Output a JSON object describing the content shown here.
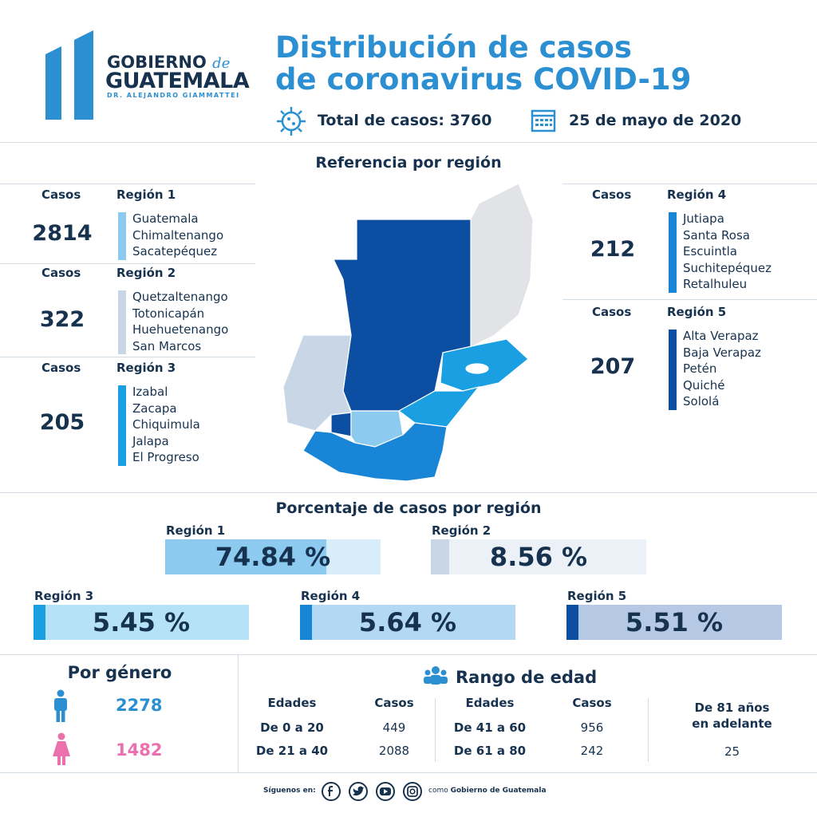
{
  "header": {
    "logo_line1": "GOBIERNO",
    "logo_de": "de",
    "logo_line2": "GUATEMALA",
    "logo_sub": "DR. ALEJANDRO GIAMMATTEI",
    "title_line1": "Distribución de casos",
    "title_line2": "de coronavirus COVID-19",
    "total": "Total de casos: 3760",
    "date": "25 de mayo de 2020"
  },
  "map_section": {
    "title": "Referencia por región",
    "regions": [
      {
        "cases_label": "Casos",
        "cases": 2814,
        "name": "Región 1",
        "departments": [
          "Guatemala",
          "Chimaltenango",
          "Sacatepéquez"
        ]
      },
      {
        "cases_label": "Casos",
        "cases": 322,
        "name": "Región 2",
        "departments": [
          "Quetzaltenango",
          "Totonicapán",
          "Huehuetenango",
          "San Marcos"
        ]
      },
      {
        "cases_label": "Casos",
        "cases": 205,
        "name": "Región 3",
        "departments": [
          "Izabal",
          "Zacapa",
          "Chiquimula",
          "Jalapa",
          "El Progreso"
        ]
      },
      {
        "cases_label": "Casos",
        "cases": 212,
        "name": "Región 4",
        "departments": [
          "Jutiapa",
          "Santa Rosa",
          "Escuintla",
          "Suchitepéquez",
          "Retalhuleu"
        ]
      },
      {
        "cases_label": "Casos",
        "cases": 207,
        "name": "Región 5",
        "departments": [
          "Alta Verapaz",
          "Baja Verapaz",
          "Petén",
          "Quiché",
          "Sololá"
        ]
      }
    ]
  },
  "percent_section": {
    "title": "Porcentaje de casos por región",
    "regions": [
      {
        "name": "Región 1",
        "percent": {
          "value": 74.84,
          "label": "74.84 %"
        }
      },
      {
        "name": "Región 2",
        "percent": {
          "value": 8.56,
          "label": "8.56 %"
        }
      },
      {
        "name": "Región 3",
        "percent": {
          "value": 5.45,
          "label": "5.45 %"
        }
      },
      {
        "name": "Región 4",
        "percent": {
          "value": 5.64,
          "label": "5.64 %"
        }
      },
      {
        "name": "Región 5",
        "percent": {
          "value": 5.51,
          "label": "5.51 %"
        }
      }
    ]
  },
  "gender": {
    "title": "Por género",
    "male": 2278,
    "female": 1482
  },
  "age": {
    "title": "Rango de edad",
    "tables": [
      {
        "headers": [
          "Edades",
          "Casos"
        ],
        "rows": [
          [
            "De 0 a 20",
            449
          ],
          [
            "De 21 a 40",
            2088
          ]
        ]
      },
      {
        "headers": [
          "Edades",
          "Casos"
        ],
        "rows": [
          [
            "De 41 a 60",
            956
          ],
          [
            "De 61 a 80",
            242
          ]
        ]
      }
    ],
    "last": {
      "label": [
        "De 81 años",
        "en adelante"
      ],
      "cases": 25
    }
  },
  "footer": {
    "follow": "Síguenos en:",
    "como": "como",
    "org": "Gobierno de Guatemala"
  }
}
